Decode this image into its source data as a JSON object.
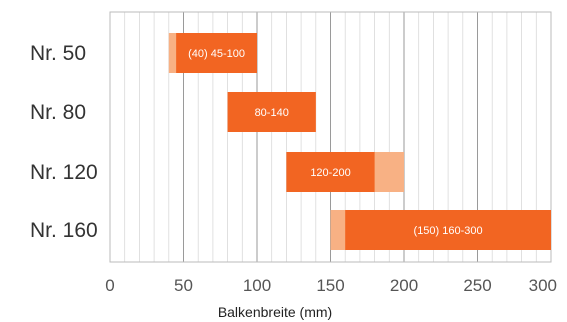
{
  "chart_data": {
    "type": "bar",
    "orientation": "horizontal",
    "categories": [
      "Nr. 50",
      "Nr. 80",
      "Nr. 120",
      "Nr. 160"
    ],
    "ranges": [
      {
        "category": "Nr. 50",
        "extended": [
          40,
          100
        ],
        "main": [
          45,
          100
        ],
        "label": "(40) 45-100"
      },
      {
        "category": "Nr. 80",
        "extended": [
          80,
          140
        ],
        "main": [
          80,
          140
        ],
        "label": "80-140"
      },
      {
        "category": "Nr. 120",
        "extended": [
          120,
          200
        ],
        "main": [
          120,
          180
        ],
        "label": "120-200"
      },
      {
        "category": "Nr. 160",
        "extended": [
          150,
          300
        ],
        "main": [
          160,
          300
        ],
        "label": "(150) 160-300"
      }
    ],
    "xlabel": "Balkenbreite (mm)",
    "xlim": [
      0,
      300
    ],
    "xticks": [
      0,
      50,
      100,
      150,
      200,
      250,
      300
    ],
    "minor_step": 10,
    "grid": true,
    "colors": {
      "main": "#f26522",
      "extended": "#f8b184",
      "grid_minor": "#d9d9d9",
      "grid_major": "#9a9a9a",
      "border": "#bbbbbb"
    }
  }
}
